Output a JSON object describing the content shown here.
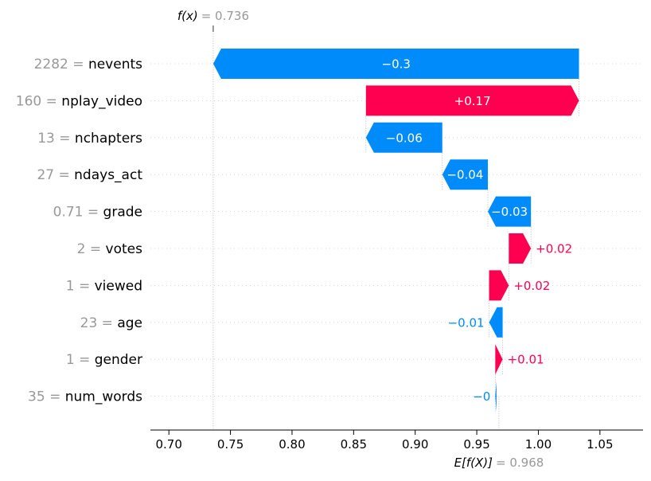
{
  "chart_data": {
    "type": "waterfall",
    "title": "",
    "xlabel": "",
    "ylabel": "",
    "xlim": [
      0.685,
      1.085
    ],
    "x_ticks": [
      0.7,
      0.75,
      0.8,
      0.85,
      0.9,
      0.95,
      1.0,
      1.05
    ],
    "x_tick_labels": [
      "0.70",
      "0.75",
      "0.80",
      "0.85",
      "0.90",
      "0.95",
      "1.00",
      "1.05"
    ],
    "fx": {
      "label": "f(x)",
      "equals": "= 0.736",
      "value": 0.736
    },
    "efx": {
      "label": "E[f(X)]",
      "equals": "= 0.968",
      "value": 0.968
    },
    "features": [
      {
        "value_text": "2282",
        "name": "nevents",
        "contribution": -0.297,
        "label": "−0.3",
        "label_inside": true
      },
      {
        "value_text": "160",
        "name": "nplay_video",
        "contribution": 0.173,
        "label": "+0.17",
        "label_inside": true
      },
      {
        "value_text": "13",
        "name": "nchapters",
        "contribution": -0.062,
        "label": "−0.06",
        "label_inside": true
      },
      {
        "value_text": "27",
        "name": "ndays_act",
        "contribution": -0.037,
        "label": "−0.04",
        "label_inside": true
      },
      {
        "value_text": "0.71",
        "name": "grade",
        "contribution": -0.035,
        "label": "−0.03",
        "label_inside": true
      },
      {
        "value_text": "2",
        "name": "votes",
        "contribution": 0.018,
        "label": "+0.02",
        "label_inside": false
      },
      {
        "value_text": "1",
        "name": "viewed",
        "contribution": 0.016,
        "label": "+0.02",
        "label_inside": false
      },
      {
        "value_text": "23",
        "name": "age",
        "contribution": -0.011,
        "label": "−0.01",
        "label_inside": false
      },
      {
        "value_text": "1",
        "name": "gender",
        "contribution": 0.006,
        "label": "+0.01",
        "label_inside": false
      },
      {
        "value_text": "35",
        "name": "num_words",
        "contribution": -0.001,
        "label": "−0",
        "label_inside": false
      }
    ],
    "colors": {
      "positive": "#ff0051",
      "negative": "#008bfb",
      "feature_value": "#999999",
      "axis": "#000000",
      "grid": "#cccccc",
      "label_on_bar": "#ffffff"
    },
    "legend": "none",
    "grid": "dotted horizontal rows"
  }
}
